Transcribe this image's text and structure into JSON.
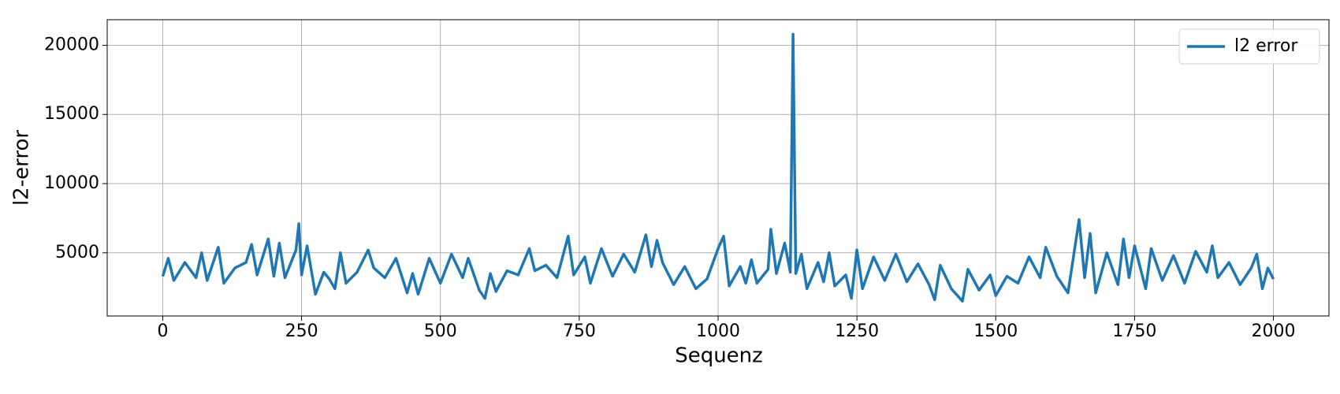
{
  "chart_data": {
    "type": "line",
    "xlabel": "Sequenz",
    "ylabel": "l2-error",
    "x": [
      0,
      10,
      20,
      40,
      60,
      70,
      80,
      100,
      110,
      130,
      150,
      160,
      170,
      190,
      200,
      210,
      220,
      240,
      245,
      250,
      260,
      275,
      290,
      300,
      310,
      320,
      330,
      350,
      370,
      380,
      400,
      420,
      440,
      450,
      460,
      480,
      500,
      520,
      540,
      550,
      570,
      580,
      590,
      600,
      620,
      640,
      660,
      670,
      690,
      710,
      730,
      740,
      760,
      770,
      790,
      810,
      830,
      850,
      870,
      880,
      890,
      900,
      920,
      940,
      960,
      980,
      1000,
      1010,
      1020,
      1040,
      1050,
      1060,
      1070,
      1090,
      1095,
      1105,
      1120,
      1130,
      1135,
      1140,
      1150,
      1160,
      1180,
      1190,
      1200,
      1210,
      1230,
      1240,
      1250,
      1260,
      1280,
      1300,
      1320,
      1340,
      1360,
      1380,
      1390,
      1400,
      1420,
      1440,
      1450,
      1470,
      1490,
      1500,
      1520,
      1540,
      1560,
      1580,
      1590,
      1610,
      1630,
      1650,
      1660,
      1670,
      1680,
      1700,
      1720,
      1730,
      1740,
      1750,
      1770,
      1780,
      1800,
      1820,
      1840,
      1860,
      1880,
      1890,
      1900,
      1920,
      1940,
      1960,
      1970,
      1980,
      1990,
      2000
    ],
    "series": [
      {
        "name": "l2 error",
        "color": "#1f77b4",
        "values": [
          3300,
          4600,
          3000,
          4300,
          3200,
          5000,
          3000,
          5400,
          2800,
          3900,
          4300,
          5600,
          3400,
          6000,
          3300,
          5700,
          3200,
          5200,
          7100,
          3400,
          5500,
          2000,
          3600,
          3100,
          2400,
          5000,
          2800,
          3600,
          5200,
          3900,
          3200,
          4600,
          2100,
          3500,
          2000,
          4600,
          2800,
          4900,
          3200,
          4600,
          2300,
          1700,
          3500,
          2200,
          3700,
          3400,
          5300,
          3700,
          4100,
          3200,
          6200,
          3400,
          4700,
          2800,
          5300,
          3300,
          4900,
          3600,
          6300,
          4000,
          5900,
          4300,
          2700,
          4000,
          2400,
          3100,
          5300,
          6200,
          2600,
          4000,
          2800,
          4500,
          2800,
          3800,
          6700,
          3500,
          5700,
          3600,
          20800,
          3500,
          4900,
          2400,
          4300,
          2900,
          5000,
          2600,
          3400,
          1700,
          5200,
          2400,
          4700,
          3000,
          4900,
          2900,
          4200,
          2700,
          1600,
          4100,
          2400,
          1500,
          3800,
          2300,
          3400,
          1900,
          3300,
          2800,
          4700,
          3200,
          5400,
          3300,
          2100,
          7400,
          3200,
          6400,
          2100,
          5000,
          2700,
          6000,
          3200,
          5500,
          2400,
          5300,
          3000,
          4800,
          2800,
          5100,
          3600,
          5500,
          3200,
          4300,
          2700,
          3900,
          4900,
          2400,
          3900,
          3100
        ]
      }
    ],
    "xlim": [
      -100,
      2100
    ],
    "xticks": [
      0,
      250,
      500,
      750,
      1000,
      1250,
      1500,
      1750,
      2000
    ],
    "ylim": [
      430,
      21850
    ],
    "yticks": [
      5000,
      10000,
      15000,
      20000
    ],
    "grid": true,
    "legend": "upper right"
  }
}
